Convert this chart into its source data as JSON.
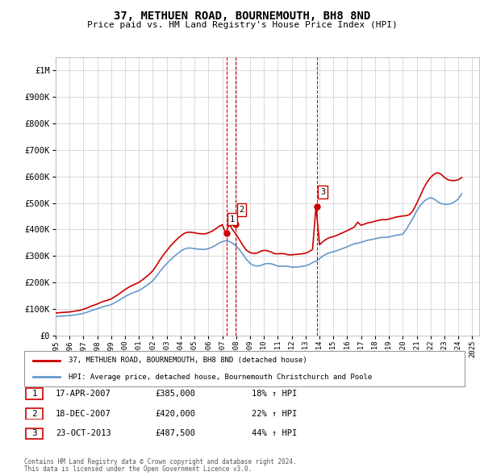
{
  "title": "37, METHUEN ROAD, BOURNEMOUTH, BH8 8ND",
  "subtitle": "Price paid vs. HM Land Registry's House Price Index (HPI)",
  "ytick_values": [
    0,
    100000,
    200000,
    300000,
    400000,
    500000,
    600000,
    700000,
    800000,
    900000,
    1000000
  ],
  "ylim": [
    0,
    1050000
  ],
  "xlim_start": 1995.0,
  "xlim_end": 2025.5,
  "legend_line1": "37, METHUEN ROAD, BOURNEMOUTH, BH8 8ND (detached house)",
  "legend_line2": "HPI: Average price, detached house, Bournemouth Christchurch and Poole",
  "sale1_label": "1",
  "sale1_date": "17-APR-2007",
  "sale1_price": "£385,000",
  "sale1_hpi": "18% ↑ HPI",
  "sale1_x": 2007.29,
  "sale1_y": 385000,
  "sale2_label": "2",
  "sale2_date": "18-DEC-2007",
  "sale2_price": "£420,000",
  "sale2_hpi": "22% ↑ HPI",
  "sale2_x": 2007.96,
  "sale2_y": 420000,
  "sale3_label": "3",
  "sale3_date": "23-OCT-2013",
  "sale3_price": "£487,500",
  "sale3_hpi": "44% ↑ HPI",
  "sale3_x": 2013.81,
  "sale3_y": 487500,
  "red_color": "#cc0000",
  "blue_color": "#6699cc",
  "grid_color": "#cccccc",
  "footer_line1": "Contains HM Land Registry data © Crown copyright and database right 2024.",
  "footer_line2": "This data is licensed under the Open Government Licence v3.0.",
  "hpi_data_x": [
    1995.0,
    1995.25,
    1995.5,
    1995.75,
    1996.0,
    1996.25,
    1996.5,
    1996.75,
    1997.0,
    1997.25,
    1997.5,
    1997.75,
    1998.0,
    1998.25,
    1998.5,
    1998.75,
    1999.0,
    1999.25,
    1999.5,
    1999.75,
    2000.0,
    2000.25,
    2000.5,
    2000.75,
    2001.0,
    2001.25,
    2001.5,
    2001.75,
    2002.0,
    2002.25,
    2002.5,
    2002.75,
    2003.0,
    2003.25,
    2003.5,
    2003.75,
    2004.0,
    2004.25,
    2004.5,
    2004.75,
    2005.0,
    2005.25,
    2005.5,
    2005.75,
    2006.0,
    2006.25,
    2006.5,
    2006.75,
    2007.0,
    2007.25,
    2007.5,
    2007.75,
    2008.0,
    2008.25,
    2008.5,
    2008.75,
    2009.0,
    2009.25,
    2009.5,
    2009.75,
    2010.0,
    2010.25,
    2010.5,
    2010.75,
    2011.0,
    2011.25,
    2011.5,
    2011.75,
    2012.0,
    2012.25,
    2012.5,
    2012.75,
    2013.0,
    2013.25,
    2013.5,
    2013.75,
    2014.0,
    2014.25,
    2014.5,
    2014.75,
    2015.0,
    2015.25,
    2015.5,
    2015.75,
    2016.0,
    2016.25,
    2016.5,
    2016.75,
    2017.0,
    2017.25,
    2017.5,
    2017.75,
    2018.0,
    2018.25,
    2018.5,
    2018.75,
    2019.0,
    2019.25,
    2019.5,
    2019.75,
    2020.0,
    2020.25,
    2020.5,
    2020.75,
    2021.0,
    2021.25,
    2021.5,
    2021.75,
    2022.0,
    2022.25,
    2022.5,
    2022.75,
    2023.0,
    2023.25,
    2023.5,
    2023.75,
    2024.0,
    2024.25
  ],
  "hpi_data_y": [
    72000,
    73000,
    74000,
    74500,
    75500,
    77000,
    79000,
    81000,
    84000,
    88000,
    93000,
    97000,
    101000,
    106000,
    110000,
    113000,
    117000,
    124000,
    131000,
    139000,
    147000,
    154000,
    160000,
    165000,
    170000,
    178000,
    187000,
    196000,
    207000,
    223000,
    241000,
    257000,
    271000,
    285000,
    297000,
    308000,
    318000,
    326000,
    330000,
    330000,
    328000,
    326000,
    325000,
    325000,
    328000,
    333000,
    340000,
    348000,
    354000,
    357000,
    355000,
    348000,
    338000,
    323000,
    305000,
    287000,
    272000,
    265000,
    262000,
    264000,
    269000,
    272000,
    271000,
    267000,
    262000,
    261000,
    262000,
    261000,
    258000,
    258000,
    259000,
    261000,
    263000,
    268000,
    275000,
    281000,
    290000,
    300000,
    308000,
    313000,
    316000,
    320000,
    325000,
    330000,
    335000,
    341000,
    346000,
    348000,
    352000,
    356000,
    360000,
    362000,
    365000,
    368000,
    370000,
    370000,
    372000,
    375000,
    378000,
    380000,
    382000,
    400000,
    422000,
    445000,
    470000,
    490000,
    505000,
    515000,
    520000,
    515000,
    505000,
    498000,
    495000,
    495000,
    498000,
    505000,
    515000,
    535000
  ],
  "red_data_x": [
    1995.0,
    1995.25,
    1995.5,
    1995.75,
    1996.0,
    1996.25,
    1996.5,
    1996.75,
    1997.0,
    1997.25,
    1997.5,
    1997.75,
    1998.0,
    1998.25,
    1998.5,
    1998.75,
    1999.0,
    1999.25,
    1999.5,
    1999.75,
    2000.0,
    2000.25,
    2000.5,
    2000.75,
    2001.0,
    2001.25,
    2001.5,
    2001.75,
    2002.0,
    2002.25,
    2002.5,
    2002.75,
    2003.0,
    2003.25,
    2003.5,
    2003.75,
    2004.0,
    2004.25,
    2004.5,
    2004.75,
    2005.0,
    2005.25,
    2005.5,
    2005.75,
    2006.0,
    2006.25,
    2006.5,
    2006.75,
    2007.0,
    2007.25,
    2007.5,
    2007.75,
    2008.0,
    2008.25,
    2008.5,
    2008.75,
    2009.0,
    2009.25,
    2009.5,
    2009.75,
    2010.0,
    2010.25,
    2010.5,
    2010.75,
    2011.0,
    2011.25,
    2011.5,
    2011.75,
    2012.0,
    2012.25,
    2012.5,
    2012.75,
    2013.0,
    2013.25,
    2013.5,
    2013.75,
    2014.0,
    2014.25,
    2014.5,
    2014.75,
    2015.0,
    2015.25,
    2015.5,
    2015.75,
    2016.0,
    2016.25,
    2016.5,
    2016.75,
    2017.0,
    2017.25,
    2017.5,
    2017.75,
    2018.0,
    2018.25,
    2018.5,
    2018.75,
    2019.0,
    2019.25,
    2019.5,
    2019.75,
    2020.0,
    2020.25,
    2020.5,
    2020.75,
    2021.0,
    2021.25,
    2021.5,
    2021.75,
    2022.0,
    2022.25,
    2022.5,
    2022.75,
    2023.0,
    2023.25,
    2023.5,
    2023.75,
    2024.0,
    2024.25
  ],
  "red_data_y": [
    85000,
    86200,
    87400,
    88000,
    89200,
    91000,
    93400,
    95700,
    99200,
    103900,
    109900,
    114600,
    119300,
    125200,
    130000,
    133500,
    138200,
    146400,
    154700,
    164200,
    173600,
    181900,
    189000,
    194800,
    200800,
    210300,
    220900,
    231500,
    244500,
    263300,
    284600,
    303600,
    320100,
    336700,
    350800,
    363800,
    375600,
    385000,
    389800,
    389800,
    387400,
    385000,
    383700,
    383700,
    387400,
    393400,
    401600,
    411000,
    418100,
    385000,
    420000,
    399000,
    381200,
    360100,
    338900,
    321200,
    313100,
    309600,
    311300,
    317700,
    321400,
    319900,
    315300,
    309200,
    308100,
    309400,
    308200,
    304600,
    304600,
    305800,
    307000,
    308400,
    310700,
    316600,
    324900,
    487500,
    342500,
    354200,
    363900,
    369900,
    373400,
    377900,
    384000,
    389700,
    395600,
    402500,
    408600,
    427400,
    415800,
    420600,
    425400,
    427500,
    431000,
    434600,
    437000,
    436900,
    439300,
    443000,
    446600,
    449000,
    451000,
    452200,
    457000,
    472300,
    498400,
    525600,
    555200,
    578700,
    596200,
    608500,
    614300,
    608500,
    596200,
    587700,
    584600,
    584600,
    587700,
    596200
  ],
  "vline1_x": 2007.29,
  "vline2_x": 2007.96,
  "vline3_x": 2013.81
}
